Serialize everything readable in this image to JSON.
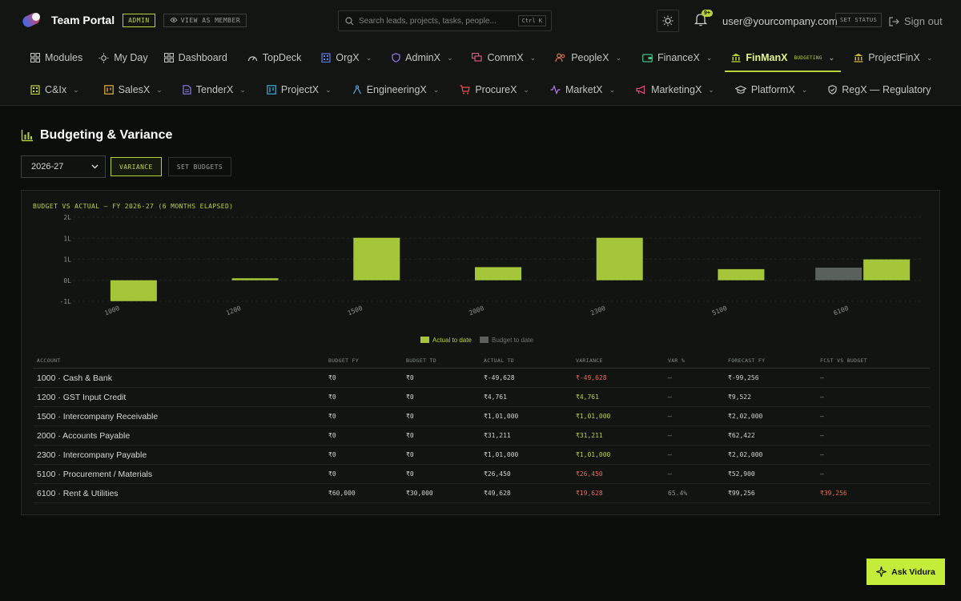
{
  "header": {
    "brand": "Team Portal",
    "admin_badge": "ADMIN",
    "view_as_member": "VIEW AS MEMBER",
    "search_placeholder": "Search leads, projects, tasks, people...",
    "search_shortcut": "Ctrl K",
    "notification_count": "9+",
    "user_email": "user@yourcompany.com",
    "set_status": "SET STATUS",
    "sign_out": "Sign out"
  },
  "nav_primary": [
    {
      "label": "Modules",
      "icon": "grid-icon"
    },
    {
      "label": "My Day",
      "icon": "sun-icon"
    },
    {
      "label": "Dashboard",
      "icon": "grid-icon"
    },
    {
      "label": "TopDeck",
      "icon": "gauge-icon"
    },
    {
      "label": "OrgX",
      "icon": "building-icon"
    },
    {
      "label": "AdminX",
      "icon": "shield-icon"
    },
    {
      "label": "CommX",
      "icon": "chat-icon"
    },
    {
      "label": "PeopleX",
      "icon": "people-icon"
    },
    {
      "label": "FinanceX",
      "icon": "wallet-icon"
    },
    {
      "label": "FinManX",
      "icon": "bank-icon",
      "tag": "BUDGETING"
    },
    {
      "label": "ProjectFinX",
      "icon": "bank-icon"
    }
  ],
  "nav_secondary": [
    {
      "label": "C&Ix",
      "icon": "building-icon"
    },
    {
      "label": "SalesX",
      "icon": "card-icon"
    },
    {
      "label": "TenderX",
      "icon": "doc-icon"
    },
    {
      "label": "ProjectX",
      "icon": "board-icon"
    },
    {
      "label": "EngineeringX",
      "icon": "compass-icon"
    },
    {
      "label": "ProcureX",
      "icon": "cart-icon"
    },
    {
      "label": "MarketX",
      "icon": "pulse-icon"
    },
    {
      "label": "MarketingX",
      "icon": "megaphone-icon"
    },
    {
      "label": "PlatformX",
      "icon": "cap-icon"
    },
    {
      "label": "RegX — Regulatory",
      "icon": "shield-icon"
    }
  ],
  "page": {
    "title": "Budgeting & Variance",
    "fiscal_year": "2026-27",
    "variance_button": "VARIANCE",
    "set_budgets_button": "SET BUDGETS",
    "ask_button": "Ask Vidura"
  },
  "chart_data": {
    "type": "bar",
    "title": "BUDGET VS ACTUAL — FY 2026-27 (6 MONTHS ELAPSED)",
    "categories": [
      "1000",
      "1200",
      "1500",
      "2000",
      "2300",
      "5100",
      "6100"
    ],
    "y_tick_labels": [
      "2L",
      "1L",
      "1L",
      "0L",
      "-1L"
    ],
    "ylim": [
      -50000,
      150000
    ],
    "series": [
      {
        "name": "Actual to date",
        "color": "#a6c63a",
        "values": [
          -49628,
          4761,
          101000,
          31211,
          101000,
          26450,
          49628
        ]
      },
      {
        "name": "Budget to date",
        "color": "#5a605a",
        "values": [
          0,
          0,
          0,
          0,
          0,
          0,
          30000
        ]
      }
    ]
  },
  "table": {
    "headers": [
      "ACCOUNT",
      "BUDGET FY",
      "BUDGET TD",
      "ACTUAL TD",
      "VARIANCE",
      "VAR %",
      "FORECAST FY",
      "FCST VS BUDGET"
    ],
    "rows": [
      {
        "account": "1000 · Cash & Bank",
        "budget_fy": "₹0",
        "budget_td": "₹0",
        "actual_td": "₹-49,628",
        "variance": "₹-49,628",
        "variance_status": "neg",
        "var_pct": "—",
        "forecast_fy": "₹-99,256",
        "fcst_vs_budget": "—",
        "fcst_status": "mut"
      },
      {
        "account": "1200 · GST Input Credit",
        "budget_fy": "₹0",
        "budget_td": "₹0",
        "actual_td": "₹4,761",
        "variance": "₹4,761",
        "variance_status": "pos",
        "var_pct": "—",
        "forecast_fy": "₹9,522",
        "fcst_vs_budget": "—",
        "fcst_status": "mut"
      },
      {
        "account": "1500 · Intercompany Receivable",
        "budget_fy": "₹0",
        "budget_td": "₹0",
        "actual_td": "₹1,01,000",
        "variance": "₹1,01,000",
        "variance_status": "pos",
        "var_pct": "—",
        "forecast_fy": "₹2,02,000",
        "fcst_vs_budget": "—",
        "fcst_status": "mut"
      },
      {
        "account": "2000 · Accounts Payable",
        "budget_fy": "₹0",
        "budget_td": "₹0",
        "actual_td": "₹31,211",
        "variance": "₹31,211",
        "variance_status": "pos",
        "var_pct": "—",
        "forecast_fy": "₹62,422",
        "fcst_vs_budget": "—",
        "fcst_status": "mut"
      },
      {
        "account": "2300 · Intercompany Payable",
        "budget_fy": "₹0",
        "budget_td": "₹0",
        "actual_td": "₹1,01,000",
        "variance": "₹1,01,000",
        "variance_status": "pos",
        "var_pct": "—",
        "forecast_fy": "₹2,02,000",
        "fcst_vs_budget": "—",
        "fcst_status": "mut"
      },
      {
        "account": "5100 · Procurement / Materials",
        "budget_fy": "₹0",
        "budget_td": "₹0",
        "actual_td": "₹26,450",
        "variance": "₹26,450",
        "variance_status": "neg",
        "var_pct": "—",
        "forecast_fy": "₹52,900",
        "fcst_vs_budget": "—",
        "fcst_status": "mut"
      },
      {
        "account": "6100 · Rent & Utilities",
        "budget_fy": "₹60,000",
        "budget_td": "₹30,000",
        "actual_td": "₹49,628",
        "variance": "₹19,628",
        "variance_status": "neg",
        "var_pct": "65.4%",
        "forecast_fy": "₹99,256",
        "fcst_vs_budget": "₹39,256",
        "fcst_status": "neg"
      }
    ]
  },
  "colors": {
    "accent": "#b6d43a",
    "negative": "#e66a5c",
    "background": "#0c0e0c"
  }
}
